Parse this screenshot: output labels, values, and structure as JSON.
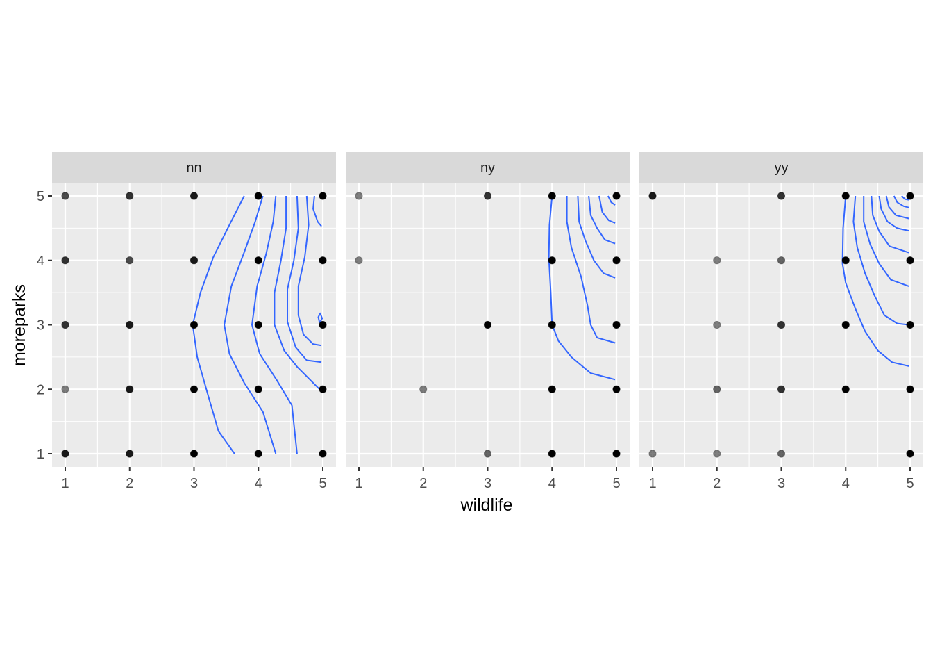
{
  "chart_data": {
    "type": "scatter",
    "facet_variable_levels": [
      "nn",
      "ny",
      "yy"
    ],
    "xlabel": "wildlife",
    "ylabel": "moreparks",
    "xlim": [
      1,
      5
    ],
    "ylim": [
      1,
      5
    ],
    "x_ticks": [
      1,
      2,
      3,
      4,
      5
    ],
    "y_ticks": [
      1,
      2,
      3,
      4,
      5
    ],
    "grid": true,
    "point_color": "#000000",
    "contour_color": "#3366FF",
    "panel_background": "#EBEBEB",
    "strip_background": "#D9D9D9",
    "facets": [
      {
        "label": "nn",
        "points": [
          {
            "x": 1,
            "y": 5,
            "opacity": 0.7
          },
          {
            "x": 2,
            "y": 5,
            "opacity": 0.8
          },
          {
            "x": 3,
            "y": 5,
            "opacity": 0.9
          },
          {
            "x": 4,
            "y": 5,
            "opacity": 1
          },
          {
            "x": 5,
            "y": 5,
            "opacity": 1
          },
          {
            "x": 1,
            "y": 4,
            "opacity": 0.8
          },
          {
            "x": 2,
            "y": 4,
            "opacity": 0.7
          },
          {
            "x": 3,
            "y": 4,
            "opacity": 0.9
          },
          {
            "x": 4,
            "y": 4,
            "opacity": 1
          },
          {
            "x": 5,
            "y": 4,
            "opacity": 1
          },
          {
            "x": 1,
            "y": 3,
            "opacity": 0.8
          },
          {
            "x": 2,
            "y": 3,
            "opacity": 0.9
          },
          {
            "x": 3,
            "y": 3,
            "opacity": 1
          },
          {
            "x": 4,
            "y": 3,
            "opacity": 1
          },
          {
            "x": 5,
            "y": 3,
            "opacity": 1
          },
          {
            "x": 1,
            "y": 2,
            "opacity": 0.5
          },
          {
            "x": 2,
            "y": 2,
            "opacity": 0.9
          },
          {
            "x": 3,
            "y": 2,
            "opacity": 1
          },
          {
            "x": 4,
            "y": 2,
            "opacity": 1
          },
          {
            "x": 5,
            "y": 2,
            "opacity": 1
          },
          {
            "x": 1,
            "y": 1,
            "opacity": 0.9
          },
          {
            "x": 2,
            "y": 1,
            "opacity": 0.9
          },
          {
            "x": 3,
            "y": 1,
            "opacity": 1
          },
          {
            "x": 4,
            "y": 1,
            "opacity": 1
          },
          {
            "x": 5,
            "y": 1,
            "opacity": 1
          }
        ],
        "contours": [
          [
            [
              3.78,
              5.0
            ],
            [
              3.55,
              4.55
            ],
            [
              3.3,
              4.05
            ],
            [
              3.1,
              3.5
            ],
            [
              2.98,
              3.0
            ],
            [
              3.05,
              2.5
            ],
            [
              3.22,
              1.9
            ],
            [
              3.38,
              1.35
            ],
            [
              3.63,
              1.0
            ]
          ],
          [
            [
              4.07,
              5.0
            ],
            [
              3.95,
              4.6
            ],
            [
              3.77,
              4.1
            ],
            [
              3.58,
              3.6
            ],
            [
              3.47,
              3.0
            ],
            [
              3.55,
              2.55
            ],
            [
              3.78,
              2.1
            ],
            [
              4.07,
              1.65
            ],
            [
              4.27,
              1.0
            ]
          ],
          [
            [
              4.27,
              5.0
            ],
            [
              4.23,
              4.6
            ],
            [
              4.12,
              4.1
            ],
            [
              3.98,
              3.6
            ],
            [
              3.9,
              3.0
            ],
            [
              4.02,
              2.55
            ],
            [
              4.28,
              2.15
            ],
            [
              4.52,
              1.75
            ],
            [
              4.6,
              1.0
            ]
          ],
          [
            [
              4.43,
              5.0
            ],
            [
              4.43,
              4.5
            ],
            [
              4.35,
              4.0
            ],
            [
              4.25,
              3.5
            ],
            [
              4.25,
              3.0
            ],
            [
              4.4,
              2.6
            ],
            [
              4.6,
              2.35
            ],
            [
              4.95,
              2.0
            ]
          ],
          [
            [
              4.6,
              5.0
            ],
            [
              4.62,
              4.5
            ],
            [
              4.55,
              4.0
            ],
            [
              4.45,
              3.55
            ],
            [
              4.45,
              3.05
            ],
            [
              4.58,
              2.65
            ],
            [
              4.75,
              2.45
            ],
            [
              4.98,
              2.42
            ]
          ],
          [
            [
              4.75,
              5.0
            ],
            [
              4.78,
              4.55
            ],
            [
              4.72,
              4.05
            ],
            [
              4.62,
              3.6
            ],
            [
              4.62,
              3.15
            ],
            [
              4.7,
              2.85
            ],
            [
              4.85,
              2.7
            ],
            [
              4.98,
              2.68
            ]
          ],
          [
            [
              4.87,
              5.0
            ],
            [
              4.85,
              4.8
            ],
            [
              4.92,
              4.6
            ],
            [
              4.98,
              4.53
            ]
          ],
          [
            [
              4.95,
              3.03
            ],
            [
              4.93,
              3.12
            ],
            [
              4.96,
              3.18
            ],
            [
              4.99,
              3.1
            ],
            [
              4.95,
              3.03
            ]
          ]
        ]
      },
      {
        "label": "ny",
        "points": [
          {
            "x": 1,
            "y": 5,
            "opacity": 0.5
          },
          {
            "x": 3,
            "y": 5,
            "opacity": 0.8
          },
          {
            "x": 4,
            "y": 5,
            "opacity": 1
          },
          {
            "x": 5,
            "y": 5,
            "opacity": 1
          },
          {
            "x": 1,
            "y": 4,
            "opacity": 0.5
          },
          {
            "x": 4,
            "y": 4,
            "opacity": 1
          },
          {
            "x": 5,
            "y": 4,
            "opacity": 1
          },
          {
            "x": 3,
            "y": 3,
            "opacity": 1
          },
          {
            "x": 4,
            "y": 3,
            "opacity": 1
          },
          {
            "x": 5,
            "y": 3,
            "opacity": 1
          },
          {
            "x": 2,
            "y": 2,
            "opacity": 0.5
          },
          {
            "x": 4,
            "y": 2,
            "opacity": 1
          },
          {
            "x": 5,
            "y": 2,
            "opacity": 1
          },
          {
            "x": 3,
            "y": 1,
            "opacity": 0.6
          },
          {
            "x": 4,
            "y": 1,
            "opacity": 1
          },
          {
            "x": 5,
            "y": 1,
            "opacity": 1
          }
        ],
        "contours": [
          [
            [
              4.0,
              5.0
            ],
            [
              3.96,
              4.55
            ],
            [
              3.95,
              4.05
            ],
            [
              3.98,
              3.5
            ],
            [
              4.0,
              3.0
            ],
            [
              4.1,
              2.75
            ],
            [
              4.3,
              2.5
            ],
            [
              4.6,
              2.25
            ],
            [
              4.98,
              2.15
            ]
          ],
          [
            [
              4.23,
              5.0
            ],
            [
              4.23,
              4.6
            ],
            [
              4.3,
              4.2
            ],
            [
              4.45,
              3.75
            ],
            [
              4.55,
              3.3
            ],
            [
              4.6,
              3.0
            ],
            [
              4.7,
              2.8
            ],
            [
              4.98,
              2.72
            ]
          ],
          [
            [
              4.4,
              5.0
            ],
            [
              4.42,
              4.6
            ],
            [
              4.52,
              4.3
            ],
            [
              4.65,
              4.0
            ],
            [
              4.8,
              3.8
            ],
            [
              4.98,
              3.73
            ]
          ],
          [
            [
              4.57,
              5.0
            ],
            [
              4.6,
              4.7
            ],
            [
              4.7,
              4.5
            ],
            [
              4.82,
              4.32
            ],
            [
              4.98,
              4.26
            ]
          ],
          [
            [
              4.73,
              5.0
            ],
            [
              4.78,
              4.75
            ],
            [
              4.88,
              4.62
            ],
            [
              4.98,
              4.58
            ]
          ],
          [
            [
              4.87,
              5.0
            ],
            [
              4.92,
              4.9
            ],
            [
              4.98,
              4.86
            ]
          ]
        ]
      },
      {
        "label": "yy",
        "points": [
          {
            "x": 1,
            "y": 5,
            "opacity": 0.9
          },
          {
            "x": 3,
            "y": 5,
            "opacity": 0.8
          },
          {
            "x": 4,
            "y": 5,
            "opacity": 1
          },
          {
            "x": 5,
            "y": 5,
            "opacity": 1
          },
          {
            "x": 2,
            "y": 4,
            "opacity": 0.5
          },
          {
            "x": 3,
            "y": 4,
            "opacity": 0.6
          },
          {
            "x": 4,
            "y": 4,
            "opacity": 1
          },
          {
            "x": 5,
            "y": 4,
            "opacity": 1
          },
          {
            "x": 2,
            "y": 3,
            "opacity": 0.5
          },
          {
            "x": 3,
            "y": 3,
            "opacity": 0.8
          },
          {
            "x": 4,
            "y": 3,
            "opacity": 1
          },
          {
            "x": 5,
            "y": 3,
            "opacity": 1
          },
          {
            "x": 2,
            "y": 2,
            "opacity": 0.6
          },
          {
            "x": 3,
            "y": 2,
            "opacity": 0.8
          },
          {
            "x": 4,
            "y": 2,
            "opacity": 1
          },
          {
            "x": 5,
            "y": 2,
            "opacity": 1
          },
          {
            "x": 1,
            "y": 1,
            "opacity": 0.5
          },
          {
            "x": 2,
            "y": 1,
            "opacity": 0.5
          },
          {
            "x": 3,
            "y": 1,
            "opacity": 0.6
          },
          {
            "x": 5,
            "y": 1,
            "opacity": 1
          }
        ],
        "contours": [
          [
            [
              4.0,
              5.0
            ],
            [
              3.96,
              4.5
            ],
            [
              3.95,
              3.95
            ],
            [
              4.0,
              3.65
            ],
            [
              4.15,
              3.25
            ],
            [
              4.3,
              2.9
            ],
            [
              4.5,
              2.6
            ],
            [
              4.72,
              2.42
            ],
            [
              4.98,
              2.36
            ]
          ],
          [
            [
              4.15,
              5.0
            ],
            [
              4.12,
              4.6
            ],
            [
              4.18,
              4.2
            ],
            [
              4.3,
              3.8
            ],
            [
              4.45,
              3.45
            ],
            [
              4.6,
              3.15
            ],
            [
              4.8,
              3.02
            ],
            [
              4.98,
              3.0
            ]
          ],
          [
            [
              4.28,
              5.0
            ],
            [
              4.28,
              4.6
            ],
            [
              4.38,
              4.25
            ],
            [
              4.52,
              3.95
            ],
            [
              4.7,
              3.7
            ],
            [
              4.98,
              3.6
            ]
          ],
          [
            [
              4.4,
              5.0
            ],
            [
              4.42,
              4.7
            ],
            [
              4.52,
              4.45
            ],
            [
              4.68,
              4.22
            ],
            [
              4.98,
              4.12
            ]
          ],
          [
            [
              4.52,
              5.0
            ],
            [
              4.55,
              4.8
            ],
            [
              4.65,
              4.6
            ],
            [
              4.8,
              4.5
            ],
            [
              4.98,
              4.46
            ]
          ],
          [
            [
              4.63,
              5.0
            ],
            [
              4.67,
              4.83
            ],
            [
              4.78,
              4.7
            ],
            [
              4.98,
              4.65
            ]
          ],
          [
            [
              4.75,
              5.0
            ],
            [
              4.8,
              4.9
            ],
            [
              4.9,
              4.84
            ],
            [
              4.98,
              4.82
            ]
          ],
          [
            [
              4.87,
              5.0
            ],
            [
              4.92,
              4.95
            ],
            [
              4.98,
              4.94
            ]
          ]
        ]
      }
    ]
  }
}
